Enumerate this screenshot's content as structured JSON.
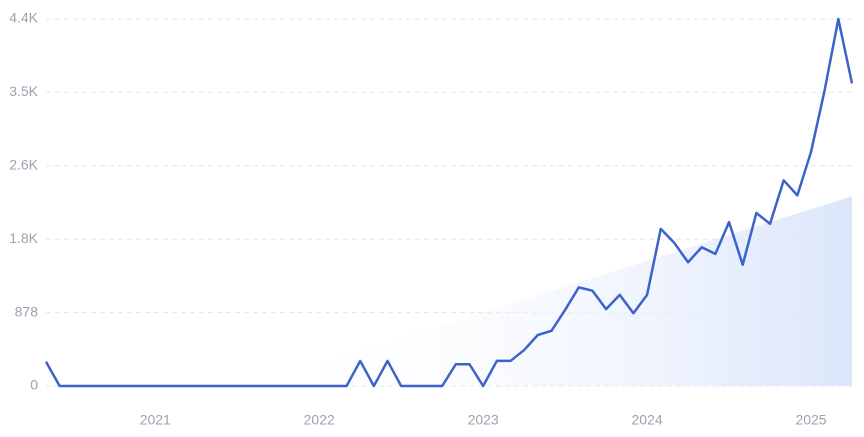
{
  "chart_data": {
    "type": "line",
    "categories": [
      null,
      null,
      null,
      null,
      null,
      null,
      null,
      null,
      "2021",
      null,
      null,
      null,
      null,
      null,
      null,
      null,
      null,
      null,
      null,
      null,
      "2022",
      null,
      null,
      null,
      null,
      null,
      null,
      null,
      null,
      null,
      null,
      null,
      "2023",
      null,
      null,
      null,
      null,
      null,
      null,
      null,
      null,
      null,
      null,
      null,
      "2024",
      null,
      null,
      null,
      null,
      null,
      null,
      null,
      null,
      null,
      null,
      null,
      "2025",
      null,
      null,
      null
    ],
    "series": [
      {
        "color": "#3b63c9",
        "values": [
          290,
          0,
          0,
          0,
          0,
          0,
          0,
          0,
          0,
          0,
          0,
          0,
          0,
          0,
          0,
          0,
          0,
          0,
          0,
          0,
          0,
          0,
          0,
          300,
          0,
          300,
          0,
          0,
          0,
          0,
          260,
          260,
          0,
          300,
          300,
          430,
          610,
          660,
          910,
          1180,
          1140,
          920,
          1090,
          870,
          1090,
          1880,
          1710,
          1480,
          1660,
          1580,
          1960,
          1450,
          2070,
          1940,
          2460,
          2280,
          2800,
          3540,
          4390,
          3620
        ]
      },
      {
        "color": "#dbe6fb",
        "fill": true,
        "values": [
          null,
          null,
          null,
          null,
          null,
          null,
          null,
          null,
          null,
          null,
          null,
          null,
          null,
          null,
          null,
          0,
          52,
          103,
          155,
          206,
          258,
          310,
          361,
          413,
          464,
          516,
          568,
          619,
          671,
          722,
          774,
          825,
          877,
          929,
          980,
          1032,
          1083,
          1135,
          1187,
          1238,
          1290,
          1341,
          1393,
          1445,
          1496,
          1548,
          1599,
          1651,
          1703,
          1754,
          1806,
          1857,
          1909,
          1960,
          2012,
          2064,
          2115,
          2167,
          2218,
          2270
        ]
      }
    ],
    "ylim": [
      0,
      4390
    ],
    "yticks": [
      0,
      878,
      {
        "value": 1756,
        "label": "1.8K"
      },
      {
        "value": 2634,
        "label": "2.6K"
      },
      {
        "value": 3512,
        "label": "3.5K"
      },
      {
        "value": 4390,
        "label": "4.4K"
      }
    ],
    "grid": true
  }
}
